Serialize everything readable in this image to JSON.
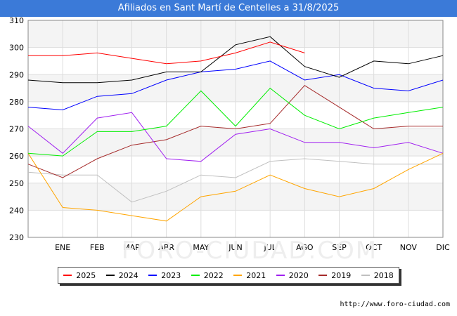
{
  "title": "Afiliados en Sant Martí de Centelles a 31/8/2025",
  "source": "http://www.foro-ciudad.com",
  "watermark": "FORO-CIUDAD.COM",
  "chart_data": {
    "type": "line",
    "title": "Afiliados en Sant Martí de Centelles a 31/8/2025",
    "categories": [
      "",
      "ENE",
      "FEB",
      "MAR",
      "ABR",
      "MAY",
      "JUN",
      "JUL",
      "AGO",
      "SEP",
      "OCT",
      "NOV",
      "DIC"
    ],
    "ylim": [
      230,
      310
    ],
    "yticks": [
      230,
      240,
      250,
      260,
      270,
      280,
      290,
      300,
      310
    ],
    "grid": true,
    "legend_position": "bottom",
    "series": [
      {
        "name": "2025",
        "color": "#ff0000",
        "values": [
          297,
          297,
          298,
          296,
          294,
          295,
          298,
          302,
          298,
          null,
          null,
          null,
          null
        ]
      },
      {
        "name": "2024",
        "color": "#000000",
        "values": [
          288,
          287,
          287,
          288,
          291,
          291,
          301,
          304,
          293,
          289,
          295,
          294,
          297
        ]
      },
      {
        "name": "2023",
        "color": "#0000ff",
        "values": [
          278,
          277,
          282,
          283,
          288,
          291,
          292,
          295,
          288,
          290,
          285,
          284,
          288
        ]
      },
      {
        "name": "2022",
        "color": "#00ee00",
        "values": [
          261,
          260,
          269,
          269,
          271,
          284,
          271,
          285,
          275,
          270,
          274,
          276,
          278
        ]
      },
      {
        "name": "2021",
        "color": "#ffa500",
        "values": [
          261,
          241,
          240,
          238,
          236,
          245,
          247,
          253,
          248,
          245,
          248,
          255,
          261
        ]
      },
      {
        "name": "2020",
        "color": "#a020f0",
        "values": [
          271,
          261,
          274,
          276,
          259,
          258,
          268,
          270,
          265,
          265,
          263,
          265,
          261
        ]
      },
      {
        "name": "2019",
        "color": "#a52a2a",
        "values": [
          257,
          252,
          259,
          264,
          266,
          271,
          270,
          272,
          286,
          278,
          270,
          271,
          271
        ]
      },
      {
        "name": "2018",
        "color": "#c0c0c0",
        "values": [
          254,
          253,
          253,
          243,
          247,
          253,
          252,
          258,
          259,
          258,
          257,
          257,
          257
        ]
      }
    ]
  }
}
